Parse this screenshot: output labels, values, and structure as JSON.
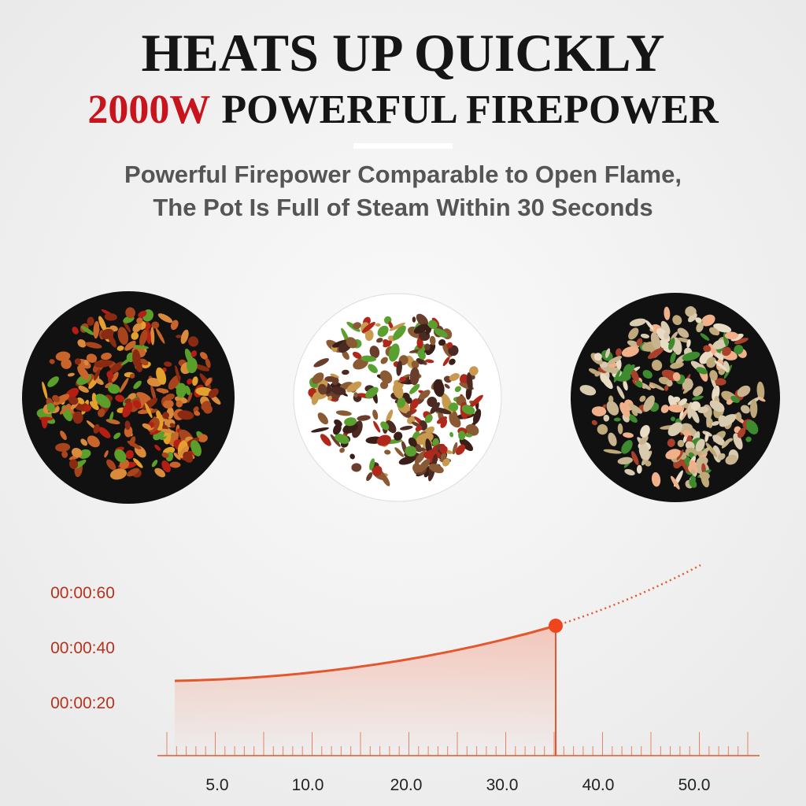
{
  "header": {
    "title": "HEATS UP QUICKLY",
    "highlight": "2000W",
    "subtitle": "POWERFUL FIREPOWER"
  },
  "description": {
    "lines": [
      "Powerful Firepower Comparable to Open Flame,",
      "The Pot Is Full of Steam Within 30 Seconds"
    ]
  },
  "graph": {
    "y_labels": [
      "00:00:60",
      "00:00:40",
      "00:00:20"
    ],
    "x_labels": [
      "5.0",
      "10.0",
      "20.0",
      "30.0",
      "40.0",
      "50.0"
    ]
  }
}
